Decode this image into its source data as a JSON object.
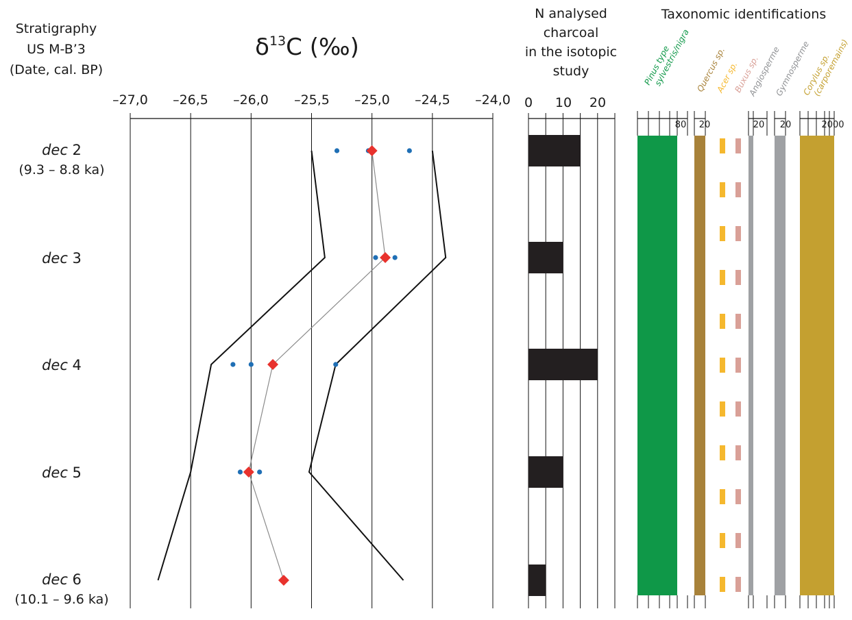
{
  "stratigraphy": {
    "title_line1": "Stratigraphy",
    "title_line2": "US M-B’3",
    "title_line3": "(Date, cal. BP)",
    "levels": [
      {
        "name": "dec",
        "num": " 2",
        "date": "(9.3 – 8.8 ka)"
      },
      {
        "name": "dec",
        "num": " 3",
        "date": ""
      },
      {
        "name": "dec",
        "num": " 4",
        "date": ""
      },
      {
        "name": "dec",
        "num": " 5",
        "date": ""
      },
      {
        "name": "dec",
        "num": " 6",
        "date": "(10.1 – 9.6 ka)"
      }
    ]
  },
  "isotope": {
    "title_prefix": "δ",
    "title_sup": "13",
    "title_suffix": "C (‰)",
    "tick_labels": [
      "–27,0",
      "–26,5",
      "–26,0",
      "–25,5",
      "–25,0",
      "–24,5",
      "–24,0"
    ]
  },
  "count": {
    "title_line1": "N analysed",
    "title_line2": "charcoal",
    "title_line3": "in the isotopic",
    "title_line4": "study",
    "tick_labels": [
      "0",
      "10",
      "20"
    ]
  },
  "taxa": {
    "title": "Taxonomic identifications",
    "items": [
      {
        "label1": "Pinus type",
        "label2": "sylvestris/nigra",
        "scale_label": "80",
        "color": "#0f9848"
      },
      {
        "label1": "Quercus sp.",
        "label2": "",
        "scale_label": "20",
        "color": "#a8823a"
      },
      {
        "label1": "Acer sp.",
        "label2": "",
        "scale_label": "",
        "color": "#f5b82e"
      },
      {
        "label1": "Buxus sp.",
        "label2": "",
        "scale_label": "",
        "color": "#d9a097"
      },
      {
        "label1": "Angiosperme",
        "label2": "",
        "scale_label": "20",
        "color": "#9fa1a4"
      },
      {
        "label1": "Gymnosperme",
        "label2": "",
        "scale_label": "20",
        "color": "#9fa1a4"
      },
      {
        "label1": "Corylus sp.",
        "label2": "(carporemains)",
        "scale_label": "2000",
        "color": "#c4a030"
      }
    ]
  },
  "chart_data": [
    {
      "type": "scatter",
      "title": "δ13C (‰)",
      "xlabel": "δ13C (‰)",
      "ylabel": "Stratigraphy US M-B’3 (Date, cal. BP)",
      "xlim": [
        -27.0,
        -24.0
      ],
      "x_ticks": [
        -27.0,
        -26.5,
        -26.0,
        -25.5,
        -25.0,
        -24.5,
        -24.0
      ],
      "categories": [
        "dec 2",
        "dec 3",
        "dec 4",
        "dec 5",
        "dec 6"
      ],
      "grid": true,
      "colors": {
        "mean": "#e8322d",
        "individual": "#1f6fb5",
        "envelope": "#111111",
        "mean_line": "#8a8a8a"
      },
      "series": [
        {
          "marker": "diamond",
          "values": [
            -25.0,
            -24.89,
            -25.82,
            -26.02,
            -25.73
          ]
        },
        {
          "marker": "dot",
          "points": [
            {
              "level": "dec 2",
              "values": [
                -25.29,
                -25.03,
                -24.69
              ]
            },
            {
              "level": "dec 3",
              "values": [
                -24.97,
                -24.81
              ]
            },
            {
              "level": "dec 4",
              "values": [
                -26.15,
                -26.0,
                -25.3
              ]
            },
            {
              "level": "dec 5",
              "values": [
                -26.09,
                -25.93
              ]
            }
          ]
        },
        {
          "values": [
            -25.5,
            -25.39,
            -26.33,
            -26.5,
            -26.77
          ]
        },
        {
          "values": [
            -24.5,
            -24.39,
            -25.3,
            -25.52,
            -24.74
          ]
        }
      ]
    },
    {
      "type": "bar",
      "title": "N analysed charcoal in the isotopic study",
      "orientation": "horizontal",
      "categories": [
        "dec 2",
        "dec 3",
        "dec 4",
        "dec 5",
        "dec 6"
      ],
      "values": [
        15,
        10,
        20,
        10,
        5
      ],
      "xlim": [
        0,
        25
      ],
      "x_ticks": [
        0,
        10,
        20
      ],
      "color": "#231f20"
    },
    {
      "type": "bar",
      "title": "Taxonomic identifications",
      "orientation": "horizontal",
      "categories": [
        "dec 2",
        "dec 3",
        "dec 4",
        "dec 5",
        "dec 6"
      ],
      "series": [
        {
          "name": "Pinus type sylvestris/nigra",
          "values": [
            80,
            80,
            80,
            80,
            80
          ],
          "max": 80,
          "color": "#0f9848"
        },
        {
          "name": "Quercus sp.",
          "values": [
            20,
            20,
            20,
            20,
            20
          ],
          "max": 20,
          "color": "#a8823a"
        },
        {
          "name": "Acer sp.",
          "values": [
            1,
            1,
            1,
            1,
            1
          ],
          "max": 1,
          "color": "#f5b82e",
          "style": "dashed"
        },
        {
          "name": "Buxus sp.",
          "values": [
            1,
            1,
            1,
            1,
            1
          ],
          "max": 1,
          "color": "#d9a097",
          "style": "dashed"
        },
        {
          "name": "Angiosperme",
          "values": [
            20,
            20,
            20,
            20,
            20
          ],
          "max": 20,
          "color": "#9fa1a4"
        },
        {
          "name": "Gymnosperme",
          "values": [
            20,
            20,
            20,
            20,
            20
          ],
          "max": 20,
          "color": "#9fa1a4"
        },
        {
          "name": "Corylus sp. (carporemains)",
          "values": [
            2000,
            2000,
            2000,
            2000,
            2000
          ],
          "max": 2000,
          "color": "#c4a030"
        }
      ]
    }
  ]
}
